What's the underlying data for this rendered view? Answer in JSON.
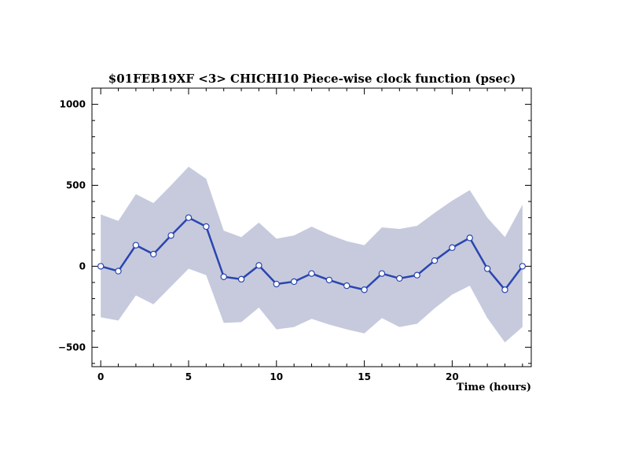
{
  "chart_data": {
    "type": "line",
    "title": "$01FEB19XF <3>  CHICHI10  Piece-wise clock function (psec)",
    "xlabel": "Time (hours)",
    "ylabel": "",
    "xlim": [
      -0.5,
      24.5
    ],
    "ylim": [
      -620,
      1100
    ],
    "xticks": [
      0,
      5,
      10,
      15,
      20
    ],
    "yticks": [
      -500,
      0,
      500,
      1000
    ],
    "grid": false,
    "colors": {
      "band": "#c6cadc",
      "line": "#2a45b0",
      "marker_fill": "#ffffff"
    },
    "x": [
      0,
      1,
      2,
      3,
      4,
      5,
      6,
      7,
      8,
      9,
      10,
      11,
      12,
      13,
      14,
      15,
      16,
      17,
      18,
      19,
      20,
      21,
      22,
      23,
      24
    ],
    "series": [
      {
        "values": [
          0,
          -30,
          130,
          75,
          190,
          300,
          245,
          -65,
          -80,
          5,
          -110,
          -95,
          -45,
          -85,
          -120,
          -145,
          -45,
          -75,
          -55,
          35,
          115,
          175,
          -15,
          -145,
          0
        ],
        "upper": [
          320,
          280,
          445,
          390,
          500,
          615,
          540,
          220,
          180,
          270,
          170,
          190,
          245,
          195,
          155,
          130,
          240,
          230,
          250,
          330,
          405,
          470,
          300,
          180,
          380
        ],
        "lower": [
          -315,
          -335,
          -180,
          -235,
          -125,
          -15,
          -55,
          -350,
          -345,
          -255,
          -390,
          -375,
          -325,
          -360,
          -390,
          -415,
          -320,
          -375,
          -355,
          -260,
          -175,
          -120,
          -320,
          -470,
          -375
        ]
      }
    ]
  }
}
